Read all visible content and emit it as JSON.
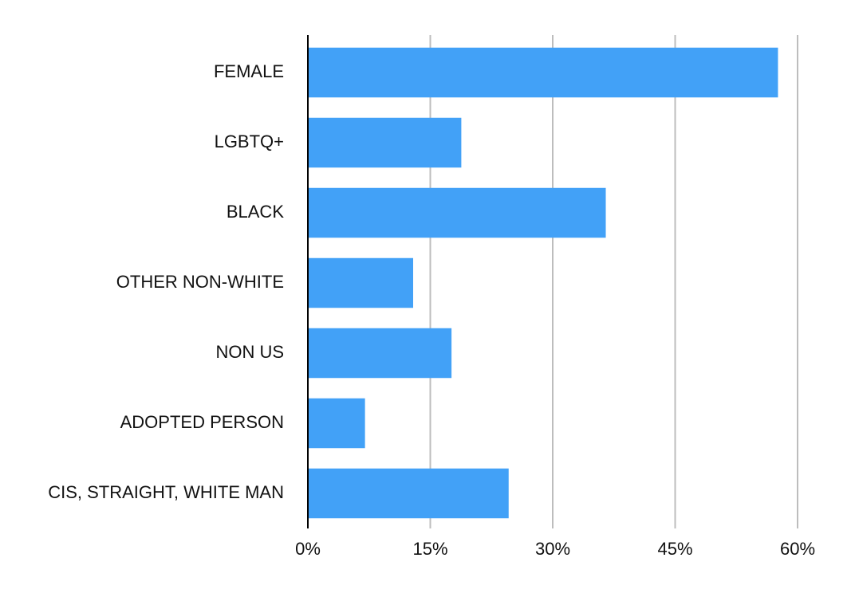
{
  "chart_data": {
    "type": "bar",
    "orientation": "horizontal",
    "categories": [
      "FEMALE",
      "LGBTQ+",
      "BLACK",
      "OTHER NON-WHITE",
      "NON US",
      "ADOPTED PERSON",
      "CIS, STRAIGHT, WHITE MAN"
    ],
    "values": [
      57.6,
      18.8,
      36.5,
      12.9,
      17.6,
      7.0,
      24.6
    ],
    "color": "#42a1f7",
    "xlim": [
      0,
      60
    ],
    "xticks": [
      {
        "value": 0,
        "label": "0%"
      },
      {
        "value": 15,
        "label": "15%"
      },
      {
        "value": 30,
        "label": "30%"
      },
      {
        "value": 45,
        "label": "45%"
      },
      {
        "value": 60,
        "label": "60%"
      }
    ],
    "grid": true
  }
}
